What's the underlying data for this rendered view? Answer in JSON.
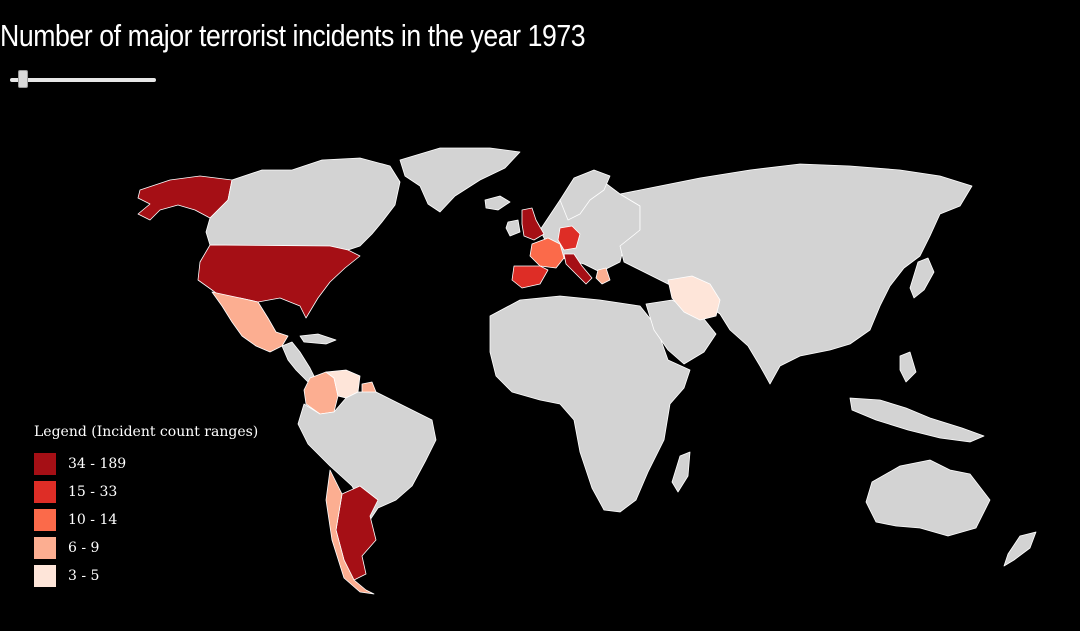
{
  "title": "Number of major terrorist incidents in the year 1973",
  "slider": {
    "value": 1973,
    "min": 1970,
    "max": 2017,
    "position_fraction": 0.09
  },
  "legend": {
    "title": "Legend (Incident count ranges)",
    "items": [
      {
        "label": "34 - 189",
        "color": "#a50f15"
      },
      {
        "label": "15 - 33",
        "color": "#de2d26"
      },
      {
        "label": "10 - 14",
        "color": "#fb6a4a"
      },
      {
        "label": "6 - 9",
        "color": "#fcae91"
      },
      {
        "label": "3 - 5",
        "color": "#fee5d9"
      }
    ]
  },
  "colors": {
    "background": "#000000",
    "land": "#d3d3d3",
    "border": "#ffffff",
    "class_34_189": "#a50f15",
    "class_15_33": "#de2d26",
    "class_10_14": "#fb6a4a",
    "class_6_9": "#fcae91",
    "class_3_5": "#fee5d9"
  },
  "highlighted_countries": [
    {
      "name": "United States",
      "range": "34 - 189"
    },
    {
      "name": "Alaska (United States)",
      "range": "34 - 189"
    },
    {
      "name": "United Kingdom",
      "range": "34 - 189"
    },
    {
      "name": "Italy",
      "range": "34 - 189"
    },
    {
      "name": "Argentina",
      "range": "34 - 189"
    },
    {
      "name": "West Germany",
      "range": "15 - 33"
    },
    {
      "name": "France",
      "range": "10 - 14"
    },
    {
      "name": "Spain",
      "range": "15 - 33"
    },
    {
      "name": "Mexico",
      "range": "6 - 9"
    },
    {
      "name": "Colombia",
      "range": "6 - 9"
    },
    {
      "name": "Venezuela",
      "range": "3 - 5"
    },
    {
      "name": "Iran",
      "range": "3 - 5"
    },
    {
      "name": "Chile",
      "range": "6 - 9"
    },
    {
      "name": "Greece",
      "range": "6 - 9"
    }
  ]
}
